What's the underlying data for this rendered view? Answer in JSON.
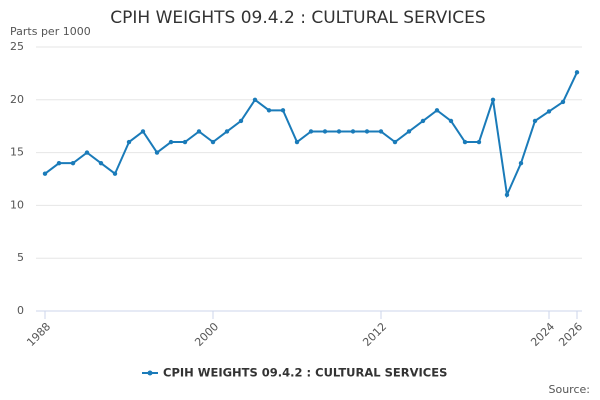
{
  "chart_data": {
    "type": "line",
    "title": "CPIH WEIGHTS 09.4.2 : CULTURAL SERVICES",
    "y_label": "Parts per 1000",
    "source": "Source:",
    "x": [
      1988,
      1989,
      1990,
      1991,
      1992,
      1993,
      1994,
      1995,
      1996,
      1997,
      1998,
      1999,
      2000,
      2001,
      2002,
      2003,
      2004,
      2005,
      2006,
      2007,
      2008,
      2009,
      2010,
      2011,
      2012,
      2013,
      2014,
      2015,
      2016,
      2017,
      2018,
      2019,
      2020,
      2021,
      2022,
      2023,
      2024,
      2025,
      2026
    ],
    "series": [
      {
        "name": "CPIH WEIGHTS 09.4.2 : CULTURAL SERVICES",
        "color": "#1a7bb9",
        "values": [
          13,
          14,
          14,
          15,
          14,
          13,
          16,
          17,
          15,
          16,
          16,
          17,
          16,
          17,
          18,
          20,
          19,
          19,
          16,
          17,
          17,
          17,
          17,
          17,
          17,
          16,
          17,
          18,
          19,
          18,
          16,
          16,
          20,
          11,
          14,
          18,
          18.9,
          19.8,
          22.6
        ]
      }
    ],
    "xlim": [
      1988,
      2026
    ],
    "xticks": [
      1988,
      2000,
      2012,
      2024,
      2026
    ],
    "ylim": [
      0,
      25
    ],
    "yticks": [
      0,
      5,
      10,
      15,
      20,
      25
    ],
    "grid": true,
    "legend": "bottom"
  }
}
